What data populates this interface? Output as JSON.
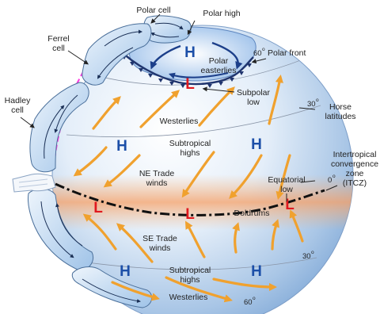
{
  "labels": {
    "polar_cell": "Polar cell",
    "ferrel_cell_1": "Ferrel",
    "ferrel_cell_2": "cell",
    "hadley_cell_1": "Hadley",
    "hadley_cell_2": "cell",
    "polar_high": "Polar high",
    "lat_60_n": "60",
    "polar_front": "Polar front",
    "polar_easterlies_1": "Polar",
    "polar_easterlies_2": "easterlies",
    "subpolar_low_1": "Subpolar",
    "subpolar_low_2": "low",
    "lat_30_n": "30",
    "horse_latitudes_1": "Horse",
    "horse_latitudes_2": "latitudes",
    "westerlies_n": "Westerlies",
    "subtropical_highs_n_1": "Subtropical",
    "subtropical_highs_n_2": "highs",
    "itcz_1": "Intertropical",
    "itcz_2": "convergence",
    "itcz_3": "zone",
    "itcz_4": "(ITCZ)",
    "ne_trade_1": "NE Trade",
    "ne_trade_2": "winds",
    "equatorial_low_1": "Equatorial",
    "equatorial_low_2": "low",
    "lat_0": "0",
    "doldrums": "Doldrums",
    "se_trade_1": "SE Trade",
    "se_trade_2": "winds",
    "lat_30_s": "30",
    "subtropical_highs_s_1": "Subtropical",
    "subtropical_highs_s_2": "highs",
    "westerlies_s": "Westerlies",
    "lat_60_s": "60",
    "degree": "o"
  },
  "pressure_symbols": {
    "high": "H",
    "low": "L"
  },
  "colors": {
    "high": "#1c4fa8",
    "low": "#e0191f",
    "wind_arrow": "#f0a12e",
    "polar_front": "#6b1fd0",
    "jet_path": "#ff38e0"
  }
}
